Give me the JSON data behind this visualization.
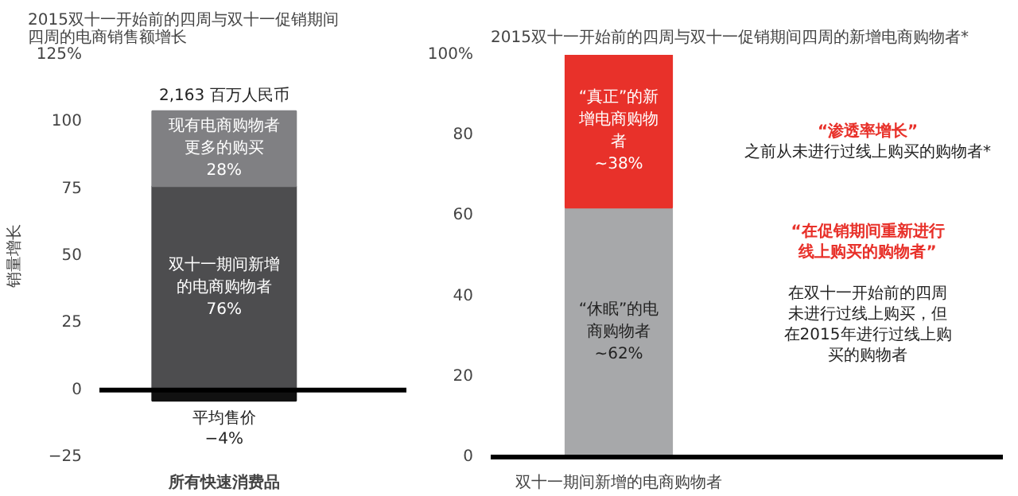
{
  "chart_data": [
    {
      "type": "bar",
      "stacked": true,
      "title": "2015双十一开始前的四周与双十一促销期间四周的电商销售额增长",
      "ylabel": "销量增长",
      "categories": [
        "所有快速消费品"
      ],
      "series": [
        {
          "name": "平均售价",
          "color": "#111111",
          "values": [
            -4
          ],
          "value_labels": [
            "−4%"
          ]
        },
        {
          "name": "双十一期间新增的电商购物者",
          "color": "#4d4d4f",
          "values": [
            76
          ],
          "value_labels": [
            "76%"
          ]
        },
        {
          "name": "现有电商购物者更多的购买",
          "color": "#808083",
          "values": [
            28
          ],
          "value_labels": [
            "28%"
          ]
        }
      ],
      "ylim": [
        -25,
        125
      ],
      "yticks": [
        -25,
        0,
        25,
        50,
        75,
        100,
        {
          "value": 125,
          "label": "125%"
        }
      ],
      "ref_lines": [
        {
          "axis": "y",
          "value": 0,
          "label": null,
          "color": "#000000"
        }
      ],
      "annotations": [
        {
          "text": "2,163 百万人民币",
          "x": "所有快速消费品",
          "y": 104
        }
      ],
      "grid": false,
      "legend": false
    },
    {
      "type": "bar",
      "stacked": true,
      "title": "2015双十一开始前的四周与双十一促销期间四周的新增电商购物者*",
      "categories": [
        "双十一期间新增的电商购物者"
      ],
      "series": [
        {
          "name": "“休眠”的电商购物者",
          "color": "#a7a8aa",
          "values": [
            62
          ],
          "value_labels": [
            "~62%"
          ]
        },
        {
          "name": "“真正”的新增电商购物者",
          "color": "#e8312a",
          "values": [
            38
          ],
          "value_labels": [
            "~38%"
          ]
        }
      ],
      "ylim": [
        0,
        100
      ],
      "yticks": [
        0,
        20,
        40,
        60,
        80,
        {
          "value": 100,
          "label": "100%"
        }
      ],
      "annotations": [
        "“渗透率增长”",
        "之前从未进行过线上购买的购物者*",
        "“在促销期间重新进行线上购买的购物者”",
        "在双十一开始前的四周未进行过线上购买，但在2015年进行过线上购买的购物者"
      ],
      "grid": false,
      "legend": false
    }
  ]
}
